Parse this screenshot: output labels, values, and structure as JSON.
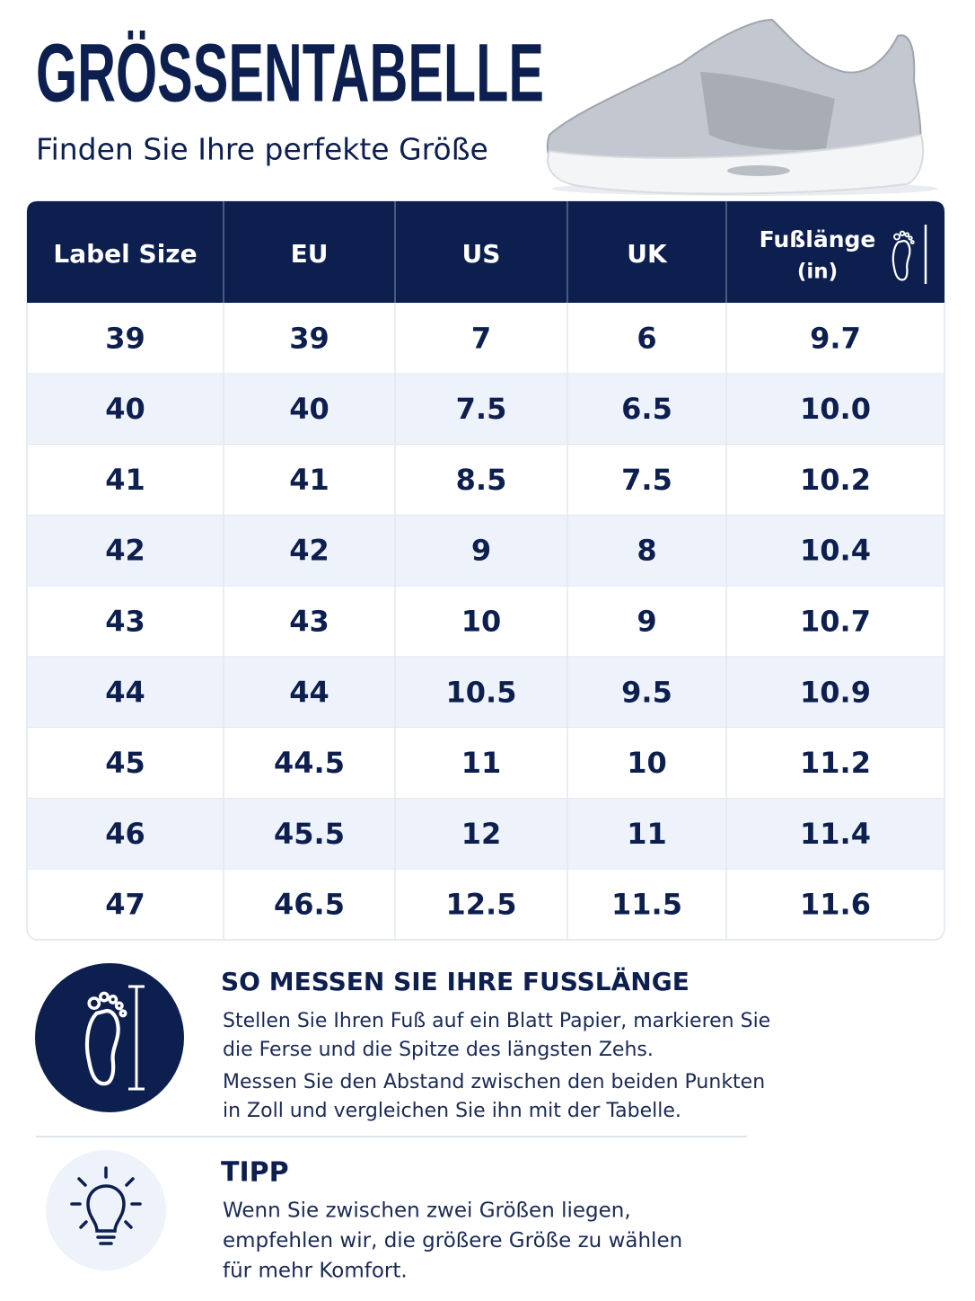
{
  "header": {
    "title": "GRÖSSENTABELLE",
    "subtitle": "Finden Sie Ihre perfekte Größe"
  },
  "table": {
    "columns": [
      "Label Size",
      "EU",
      "US",
      "UK",
      {
        "label": "Fußlänge",
        "unit": "(in)"
      }
    ],
    "rows": [
      [
        "39",
        "39",
        "7",
        "6",
        "9.7"
      ],
      [
        "40",
        "40",
        "7.5",
        "6.5",
        "10.0"
      ],
      [
        "41",
        "41",
        "8.5",
        "7.5",
        "10.2"
      ],
      [
        "42",
        "42",
        "9",
        "8",
        "10.4"
      ],
      [
        "43",
        "43",
        "10",
        "9",
        "10.7"
      ],
      [
        "44",
        "44",
        "10.5",
        "9.5",
        "10.9"
      ],
      [
        "45",
        "44.5",
        "11",
        "10",
        "11.2"
      ],
      [
        "46",
        "45.5",
        "12",
        "11",
        "11.4"
      ],
      [
        "47",
        "46.5",
        "12.5",
        "11.5",
        "11.6"
      ]
    ]
  },
  "measure": {
    "title": "SO MESSEN SIE IHRE FUSSLÄNGE",
    "paragraphs": [
      [
        "Stellen Sie Ihren Fuß auf ein Blatt Papier, markieren Sie",
        "die Ferse und die Spitze des längsten Zehs."
      ],
      [
        "Messen Sie den Abstand zwischen den beiden Punkten",
        "in Zoll und vergleichen Sie ihn mit der Tabelle."
      ]
    ]
  },
  "tip": {
    "title": "TIPP",
    "lines": [
      "Wenn Sie zwischen zwei Größen liegen,",
      "empfehlen wir, die größere Größe zu wählen",
      "für mehr Komfort."
    ]
  }
}
